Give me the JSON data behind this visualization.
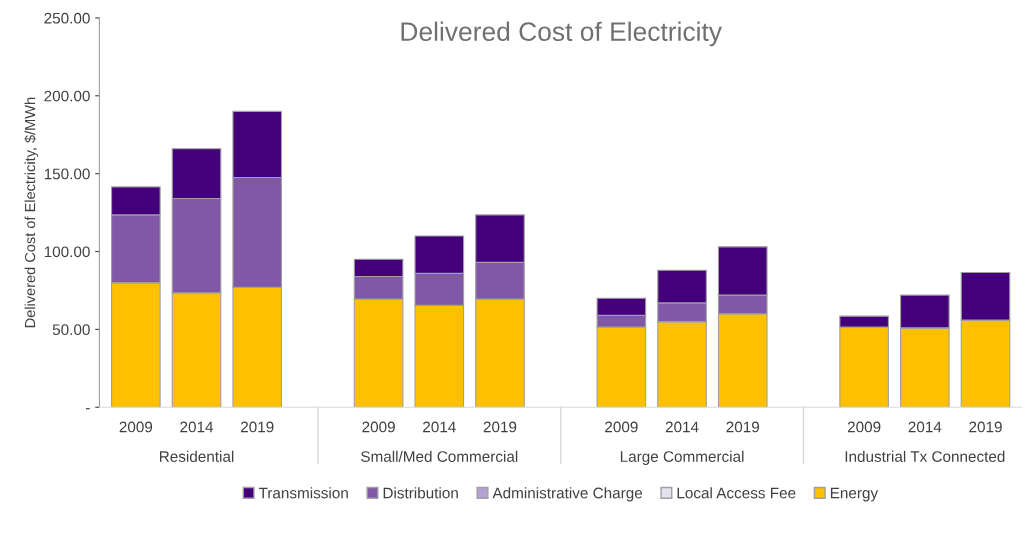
{
  "chart_data": {
    "type": "bar",
    "title": "Delivered Cost of Electricity",
    "ylabel": "Delivered Cost of Electricity, $/MWh",
    "categories": [
      "2009",
      "2014",
      "2019",
      null,
      "2009",
      "2014",
      "2019",
      null,
      "2009",
      "2014",
      "2019",
      null,
      "2009",
      "2014",
      "2019"
    ],
    "annotations": [
      "Residential",
      "Small/Med Commercial",
      "Large Commercial",
      "Industrial Tx Connected"
    ],
    "stacked": true,
    "series": [
      {
        "name": "Energy",
        "color": "#ffc000",
        "values": [
          80,
          73.5,
          77,
          null,
          69.5,
          65.5,
          69.5,
          null,
          51.5,
          55,
          60,
          null,
          51.5,
          51,
          56
        ]
      },
      {
        "name": "Local Access Fee",
        "color": "#e4e2ee",
        "values": [
          0,
          0,
          0,
          null,
          0,
          0,
          0,
          null,
          0,
          0,
          0,
          null,
          0,
          0,
          0
        ]
      },
      {
        "name": "Administrative Charge",
        "color": "#b4a2d2",
        "values": [
          0,
          0,
          0,
          null,
          0,
          0,
          0,
          null,
          0,
          0,
          0,
          null,
          0,
          0,
          0
        ]
      },
      {
        "name": "Distribution",
        "color": "#8157a8",
        "values": [
          43.5,
          60.5,
          70.5,
          null,
          14.5,
          20.5,
          23.5,
          null,
          7.5,
          12,
          12,
          null,
          0,
          0,
          0
        ]
      },
      {
        "name": "Transmission",
        "color": "#43007a",
        "values": [
          18,
          32,
          42.5,
          null,
          11,
          24,
          30.5,
          null,
          11,
          21,
          31,
          null,
          7,
          21,
          30.5
        ]
      }
    ],
    "ylim": [
      0,
      250
    ],
    "yticks": [
      {
        "value": 0,
        "label": "-"
      },
      {
        "value": 50,
        "label": "50.00"
      },
      {
        "value": 100,
        "label": "100.00"
      },
      {
        "value": 150,
        "label": "150.00"
      },
      {
        "value": 200,
        "label": "200.00"
      },
      {
        "value": 250,
        "label": "250.00"
      }
    ],
    "grid": false,
    "legend": "bottom"
  }
}
